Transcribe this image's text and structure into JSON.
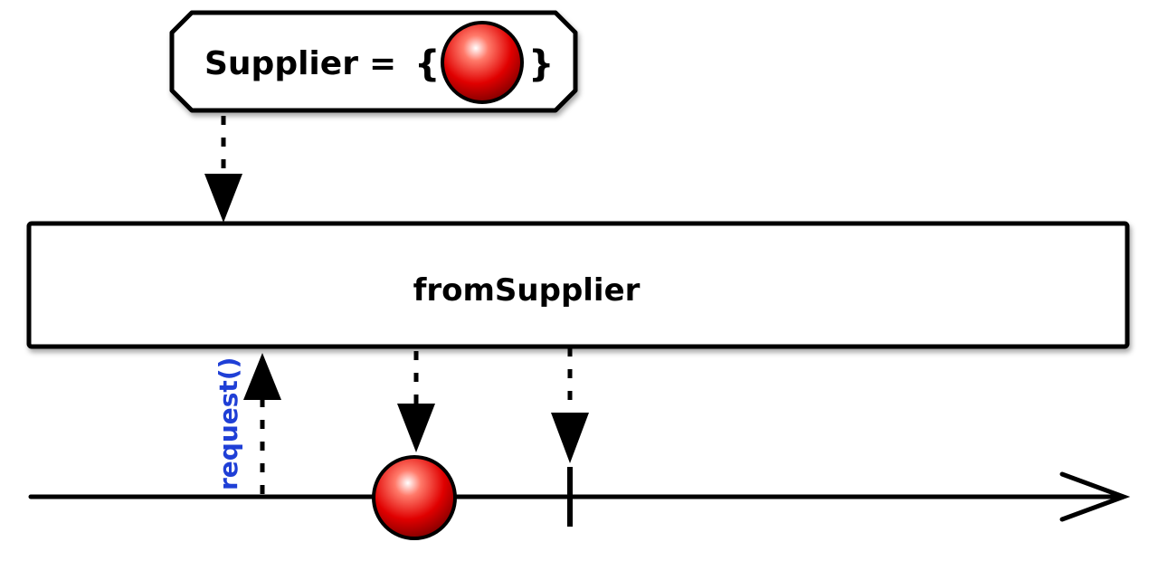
{
  "diagram": {
    "supplier_label": "Supplier",
    "equals": "=",
    "brace_open": "{",
    "brace_close": "}",
    "operator_label": "fromSupplier",
    "request_label": "request()",
    "marble_icon": "red-marble-icon",
    "colors": {
      "marble": "#e00000",
      "marble_highlight": "#ffffff",
      "request_text": "#1f3fd6",
      "stroke": "#000000",
      "box_fill": "#ffffff"
    }
  }
}
